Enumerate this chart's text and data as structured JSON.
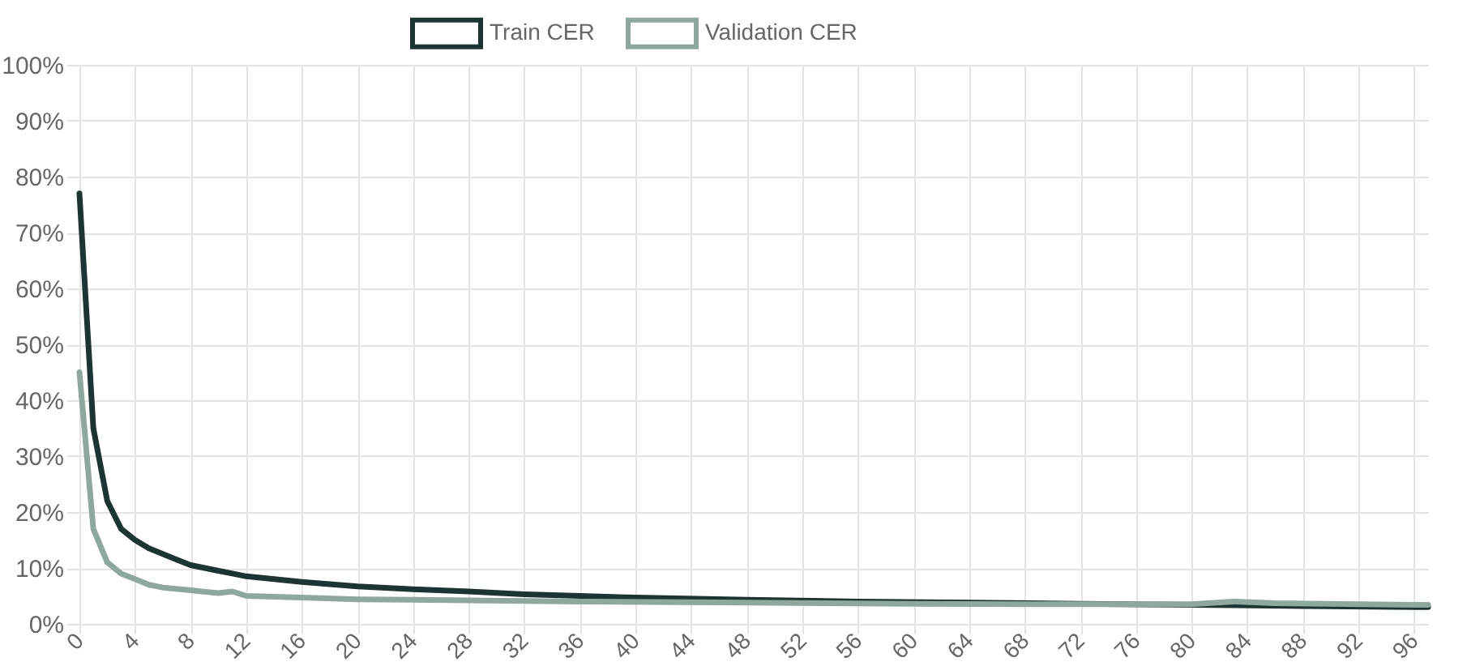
{
  "chart_data": {
    "type": "line",
    "xlim": [
      0,
      97
    ],
    "xticks": [
      0,
      4,
      8,
      12,
      16,
      20,
      24,
      28,
      32,
      36,
      40,
      44,
      48,
      52,
      56,
      60,
      64,
      68,
      72,
      76,
      80,
      84,
      88,
      92,
      96
    ],
    "ylim": [
      0,
      100
    ],
    "yticks": [
      {
        "value": 0,
        "label": "0%"
      },
      {
        "value": 10,
        "label": "10%"
      },
      {
        "value": 20,
        "label": "20%"
      },
      {
        "value": 30,
        "label": "30%"
      },
      {
        "value": 40,
        "label": "40%"
      },
      {
        "value": 50,
        "label": "50%"
      },
      {
        "value": 60,
        "label": "60%"
      },
      {
        "value": 70,
        "label": "70%"
      },
      {
        "value": 80,
        "label": "80%"
      },
      {
        "value": 90,
        "label": "90%"
      },
      {
        "value": 100,
        "label": "100%"
      }
    ],
    "grid": true,
    "legend": "top",
    "marker": "none",
    "line_style": "solid",
    "series": [
      {
        "name": "Train CER",
        "color": "#1c3530",
        "x": [
          0,
          1,
          2,
          3,
          4,
          5,
          6,
          7,
          8,
          9,
          10,
          11,
          12,
          14,
          16,
          20,
          24,
          28,
          32,
          36,
          40,
          48,
          56,
          64,
          72,
          80,
          88,
          96,
          97
        ],
        "values": [
          77,
          35,
          22,
          17,
          15,
          13.5,
          12.5,
          11.5,
          10.5,
          10,
          9.5,
          9,
          8.5,
          8,
          7.5,
          6.7,
          6.2,
          5.8,
          5.3,
          5,
          4.7,
          4.3,
          4,
          3.8,
          3.6,
          3.4,
          3.2,
          3,
          3
        ]
      },
      {
        "name": "Validation CER",
        "color": "#8fa89e",
        "x": [
          0,
          1,
          2,
          3,
          4,
          5,
          6,
          8,
          10,
          11,
          12,
          16,
          20,
          28,
          36,
          48,
          60,
          72,
          80,
          83,
          86,
          96,
          97
        ],
        "values": [
          45,
          17,
          11,
          9,
          8,
          7,
          6.5,
          6,
          5.5,
          5.8,
          5,
          4.7,
          4.4,
          4.2,
          4,
          3.8,
          3.6,
          3.5,
          3.5,
          4,
          3.7,
          3.4,
          3.4
        ]
      }
    ]
  }
}
